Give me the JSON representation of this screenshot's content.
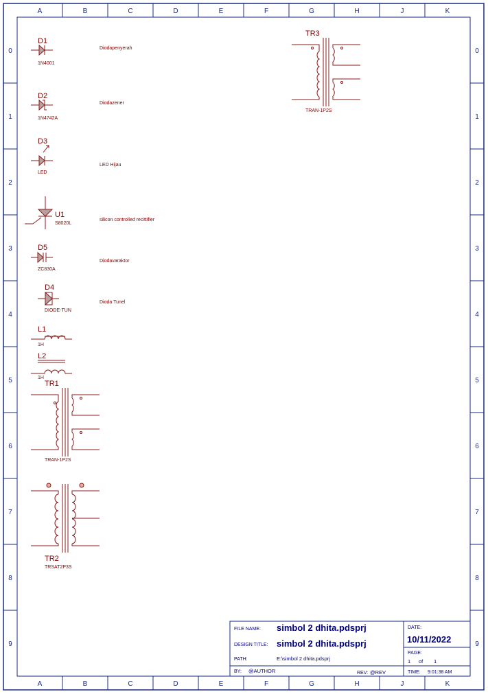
{
  "columns": [
    "A",
    "B",
    "C",
    "D",
    "E",
    "F",
    "G",
    "H",
    "J",
    "K"
  ],
  "rows": [
    "0",
    "1",
    "2",
    "3",
    "4",
    "5",
    "6",
    "7",
    "8",
    "9"
  ],
  "components": {
    "d1": {
      "ref": "D1",
      "value": "1N4001",
      "note": "Diodapenyerah"
    },
    "d2": {
      "ref": "D2",
      "value": "1N4742A",
      "note": "Diodazener"
    },
    "d3": {
      "ref": "D3",
      "value": "LED",
      "note": "LED Hijau"
    },
    "u1": {
      "ref": "U1",
      "value": "S8020L",
      "note": "silicon controlled recittifier"
    },
    "d5": {
      "ref": "D5",
      "value": "ZC830A",
      "note": "Diodavaraktor"
    },
    "d4": {
      "ref": "D4",
      "value": "DIODE-TUN",
      "note": "Dioda Tunel"
    },
    "l1": {
      "ref": "L1",
      "value": "1H"
    },
    "l2": {
      "ref": "L2",
      "value": "1H"
    },
    "tr1": {
      "ref": "TR1",
      "value": "TRAN-1P2S"
    },
    "tr2": {
      "ref": "TR2",
      "value": "TRSAT2P3S"
    },
    "tr3": {
      "ref": "TR3",
      "value": "TRAN-1P2S"
    }
  },
  "title_block": {
    "file_name_label": "FILE NAME:",
    "file_name": "simbol 2 dhita.pdsprj",
    "design_title_label": "DESIGN TITLE:",
    "design_title": "simbol 2 dhita.pdsprj",
    "path_label": "PATH:",
    "path": "E:\\simbol 2 dhita.pdsprj",
    "by_label": "BY:",
    "by": "@AUTHOR",
    "rev_label": "REV:",
    "rev": "@REV",
    "date_label": "DATE:",
    "date": "10/11/2022",
    "page_label": "PAGE:",
    "page_num": "1",
    "page_of": "of",
    "page_total": "1",
    "time_label": "TIME:",
    "time": "9:01:38 AM"
  },
  "colors": {
    "frame": "#1a2a80",
    "symbol": "#8b1a1a",
    "text": "#800000"
  }
}
